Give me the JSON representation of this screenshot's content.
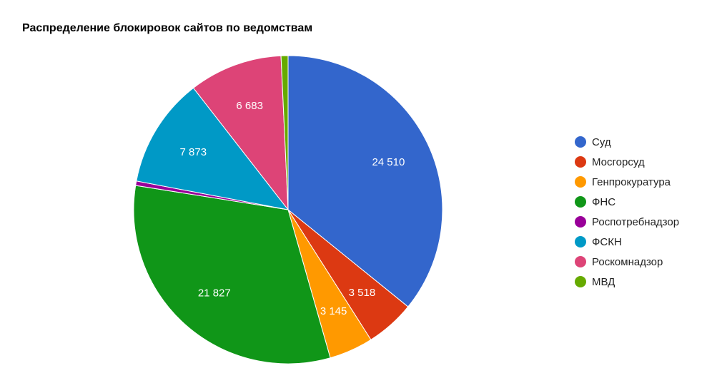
{
  "chart_data": {
    "type": "pie",
    "title": "Распределение блокировок сайтов по ведомствам",
    "legend_position": "right",
    "slices": [
      {
        "name": "Суд",
        "value": 24510,
        "label": "24 510",
        "color": "#3366cc"
      },
      {
        "name": "Мосгорсуд",
        "value": 3518,
        "label": "3 518",
        "color": "#dc3912"
      },
      {
        "name": "Генпрокуратура",
        "value": 3145,
        "label": "3 145",
        "color": "#ff9900"
      },
      {
        "name": "ФНС",
        "value": 21827,
        "label": "21 827",
        "color": "#109618"
      },
      {
        "name": "Роспотребнадзор",
        "value": 320,
        "label": "",
        "color": "#990099"
      },
      {
        "name": "ФСКН",
        "value": 7873,
        "label": "7 873",
        "color": "#0099c6"
      },
      {
        "name": "Роскомнадзор",
        "value": 6683,
        "label": "6 683",
        "color": "#dd4477"
      },
      {
        "name": "МВД",
        "value": 500,
        "label": "",
        "color": "#66aa00"
      }
    ]
  }
}
